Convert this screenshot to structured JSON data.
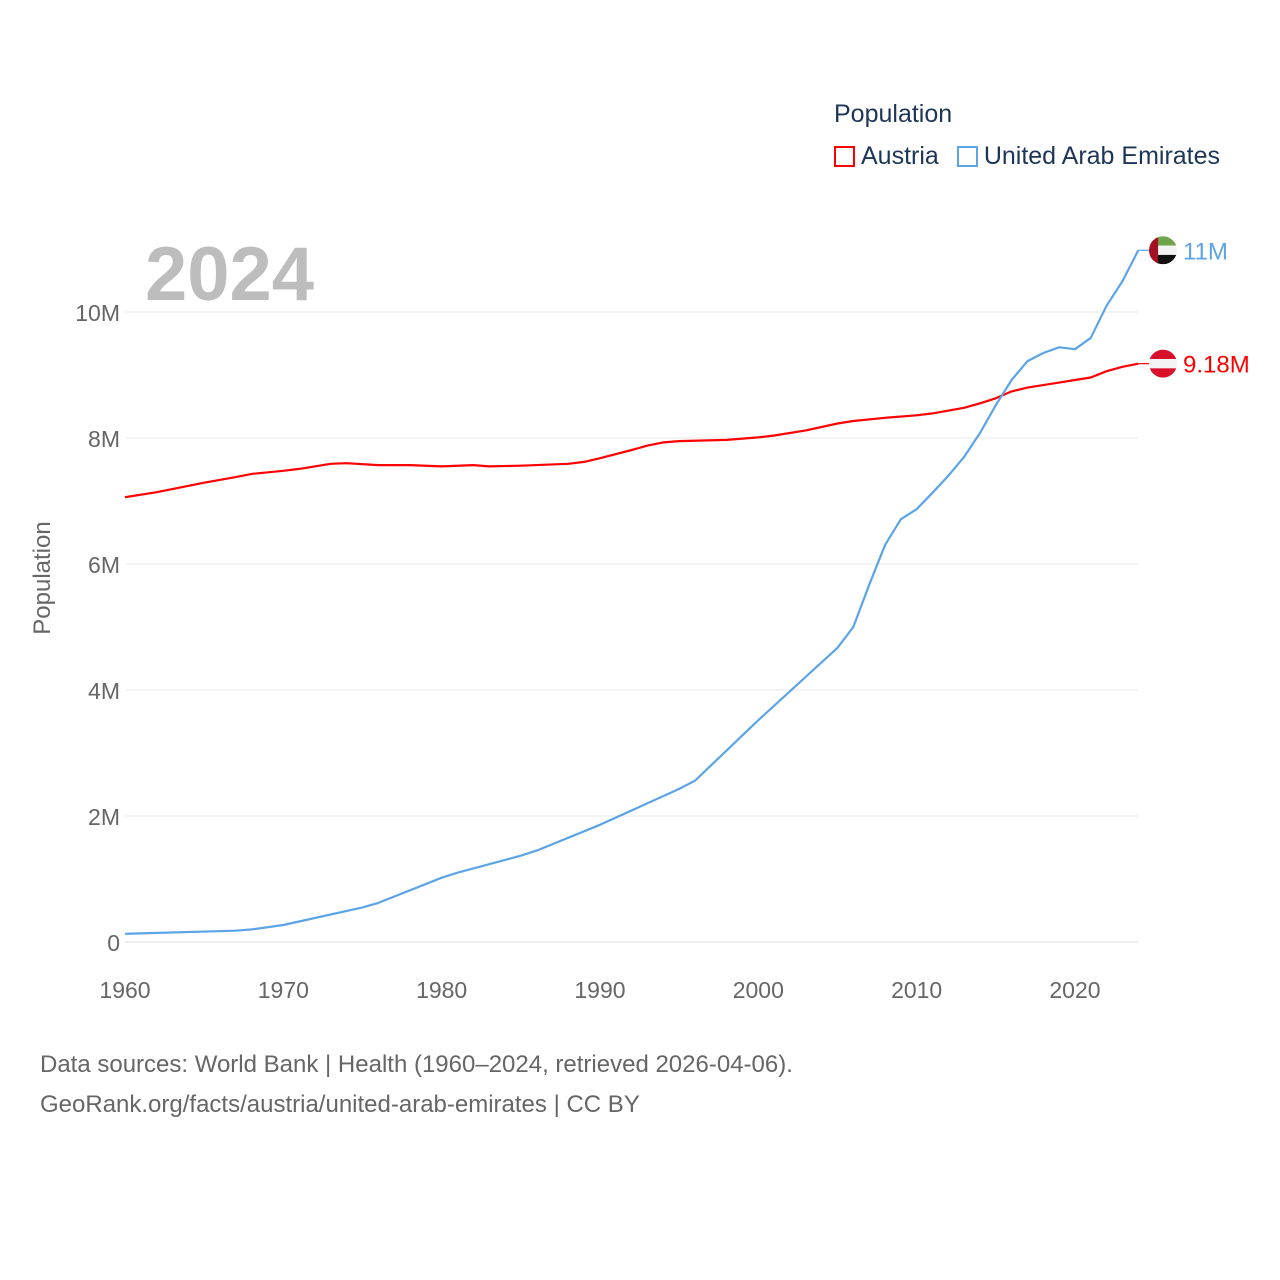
{
  "chart_data": {
    "type": "line",
    "title": "Population",
    "year_label": "2024",
    "xlabel": "",
    "ylabel": "Population",
    "xlim": [
      1960,
      2024
    ],
    "ylim": [
      0,
      11000000
    ],
    "x_ticks": [
      "1960",
      "1970",
      "1980",
      "1990",
      "2000",
      "2010",
      "2020"
    ],
    "y_ticks": [
      {
        "v": 0,
        "label": "0"
      },
      {
        "v": 2000000,
        "label": "2M"
      },
      {
        "v": 4000000,
        "label": "4M"
      },
      {
        "v": 6000000,
        "label": "6M"
      },
      {
        "v": 8000000,
        "label": "8M"
      },
      {
        "v": 10000000,
        "label": "10M"
      }
    ],
    "grid": true,
    "legend_position": "top-right",
    "series": [
      {
        "name": "Austria",
        "color": "#ff0000",
        "end_label": "9.18M",
        "flag": "austria",
        "x": [
          1960,
          1962,
          1965,
          1967,
          1968,
          1970,
          1971,
          1973,
          1974,
          1976,
          1978,
          1980,
          1982,
          1983,
          1985,
          1988,
          1989,
          1990,
          1992,
          1993,
          1994,
          1995,
          1998,
          2000,
          2001,
          2003,
          2005,
          2006,
          2008,
          2010,
          2011,
          2013,
          2014,
          2015,
          2016,
          2017,
          2018,
          2019,
          2020,
          2021,
          2022,
          2023,
          2024
        ],
        "y": [
          7.06,
          7.14,
          7.29,
          7.38,
          7.43,
          7.48,
          7.51,
          7.59,
          7.6,
          7.57,
          7.57,
          7.55,
          7.57,
          7.55,
          7.56,
          7.59,
          7.62,
          7.68,
          7.81,
          7.88,
          7.93,
          7.95,
          7.97,
          8.01,
          8.04,
          8.12,
          8.23,
          8.27,
          8.32,
          8.36,
          8.39,
          8.48,
          8.55,
          8.63,
          8.74,
          8.8,
          8.84,
          8.88,
          8.92,
          8.96,
          9.06,
          9.13,
          9.18
        ]
      },
      {
        "name": "United Arab Emirates",
        "color": "#5ba4e8",
        "end_label": "11M",
        "flag": "uae",
        "x": [
          1960,
          1967,
          1968,
          1970,
          1975,
          1976,
          1980,
          1981,
          1985,
          1986,
          1990,
          1995,
          1996,
          2000,
          2005,
          2006,
          2007,
          2008,
          2009,
          2010,
          2011,
          2012,
          2013,
          2014,
          2015,
          2016,
          2017,
          2018,
          2019,
          2020,
          2021,
          2022,
          2023,
          2024
        ],
        "y": [
          0.13,
          0.18,
          0.2,
          0.27,
          0.55,
          0.62,
          1.02,
          1.1,
          1.37,
          1.45,
          1.86,
          2.43,
          2.56,
          3.52,
          4.67,
          5.0,
          5.67,
          6.3,
          6.71,
          6.87,
          7.13,
          7.4,
          7.7,
          8.08,
          8.52,
          8.92,
          9.22,
          9.35,
          9.44,
          9.41,
          9.59,
          10.1,
          10.49,
          10.98
        ]
      }
    ],
    "y_unit": "millions"
  },
  "source": {
    "line1": "Data sources: World Bank | Health (1960–2024, retrieved 2026-04-06).",
    "line2": "GeoRank.org/facts/austria/united-arab-emirates | CC BY"
  }
}
